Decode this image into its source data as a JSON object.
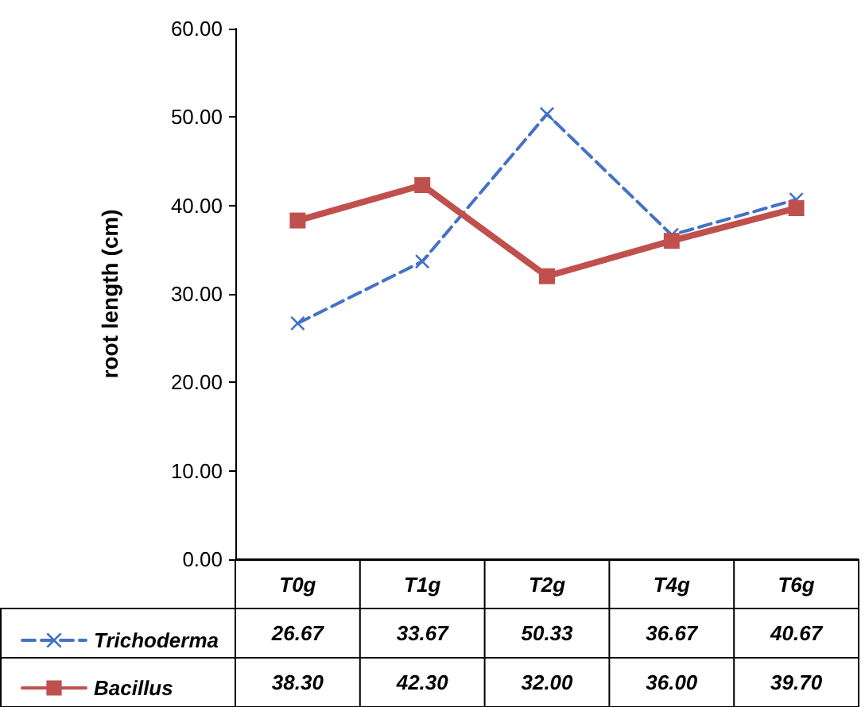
{
  "chart_data": {
    "type": "line",
    "ylabel": "root length (cm)",
    "categories": [
      "T0g",
      "T1g",
      "T2g",
      "T4g",
      "T6g"
    ],
    "series": [
      {
        "name": "Trichoderma",
        "color": "#4472c4",
        "values": [
          26.67,
          33.67,
          50.33,
          36.67,
          40.67
        ],
        "value_labels": [
          "26.67",
          "33.67",
          "50.33",
          "36.67",
          "40.67"
        ],
        "marker": "cross",
        "line_style": "dashed"
      },
      {
        "name": "Bacillus",
        "color": "#c0504d",
        "values": [
          38.3,
          42.3,
          32,
          36,
          39.7
        ],
        "value_labels": [
          "38.30",
          "42.30",
          "32.00",
          "36.00",
          "39.70"
        ],
        "marker": "square",
        "line_style": "solid"
      }
    ],
    "ylim": [
      0,
      60
    ],
    "yticks": [
      {
        "value": 0,
        "label": "0.00"
      },
      {
        "value": 10,
        "label": "10.00"
      },
      {
        "value": 20,
        "label": "20.00"
      },
      {
        "value": 30,
        "label": "30.00"
      },
      {
        "value": 40,
        "label": "40.00"
      },
      {
        "value": 50,
        "label": "50.00"
      },
      {
        "value": 60,
        "label": "60.00"
      }
    ],
    "grid": false,
    "legend": "bottom"
  }
}
